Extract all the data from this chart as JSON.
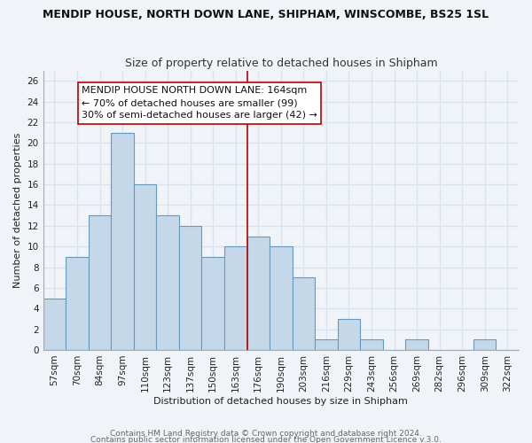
{
  "title": "MENDIP HOUSE, NORTH DOWN LANE, SHIPHAM, WINSCOMBE, BS25 1SL",
  "subtitle": "Size of property relative to detached houses in Shipham",
  "xlabel": "Distribution of detached houses by size in Shipham",
  "ylabel": "Number of detached properties",
  "bar_labels": [
    "57sqm",
    "70sqm",
    "84sqm",
    "97sqm",
    "110sqm",
    "123sqm",
    "137sqm",
    "150sqm",
    "163sqm",
    "176sqm",
    "190sqm",
    "203sqm",
    "216sqm",
    "229sqm",
    "243sqm",
    "256sqm",
    "269sqm",
    "282sqm",
    "296sqm",
    "309sqm",
    "322sqm"
  ],
  "bar_values": [
    5,
    9,
    13,
    21,
    16,
    13,
    12,
    9,
    10,
    11,
    10,
    7,
    1,
    3,
    1,
    0,
    1,
    0,
    0,
    1,
    0
  ],
  "bar_color": "#c5d8ea",
  "bar_edge_color": "#6699bb",
  "vline_position": 8.5,
  "vline_color": "#bb0000",
  "annotation_line1": "MENDIP HOUSE NORTH DOWN LANE: 164sqm",
  "annotation_line2": "← 70% of detached houses are smaller (99)",
  "annotation_line3": "30% of semi-detached houses are larger (42) →",
  "annotation_box_color": "#ffffff",
  "annotation_box_edge": "#bb0000",
  "ylim": [
    0,
    27
  ],
  "yticks": [
    0,
    2,
    4,
    6,
    8,
    10,
    12,
    14,
    16,
    18,
    20,
    22,
    24,
    26
  ],
  "footer1": "Contains HM Land Registry data © Crown copyright and database right 2024.",
  "footer2": "Contains public sector information licensed under the Open Government Licence v.3.0.",
  "background_color": "#f0f4f8",
  "grid_color": "#d8e4f0",
  "title_fontsize": 9,
  "subtitle_fontsize": 9,
  "annotation_fontsize": 8,
  "axis_label_fontsize": 8,
  "tick_fontsize": 7.5
}
